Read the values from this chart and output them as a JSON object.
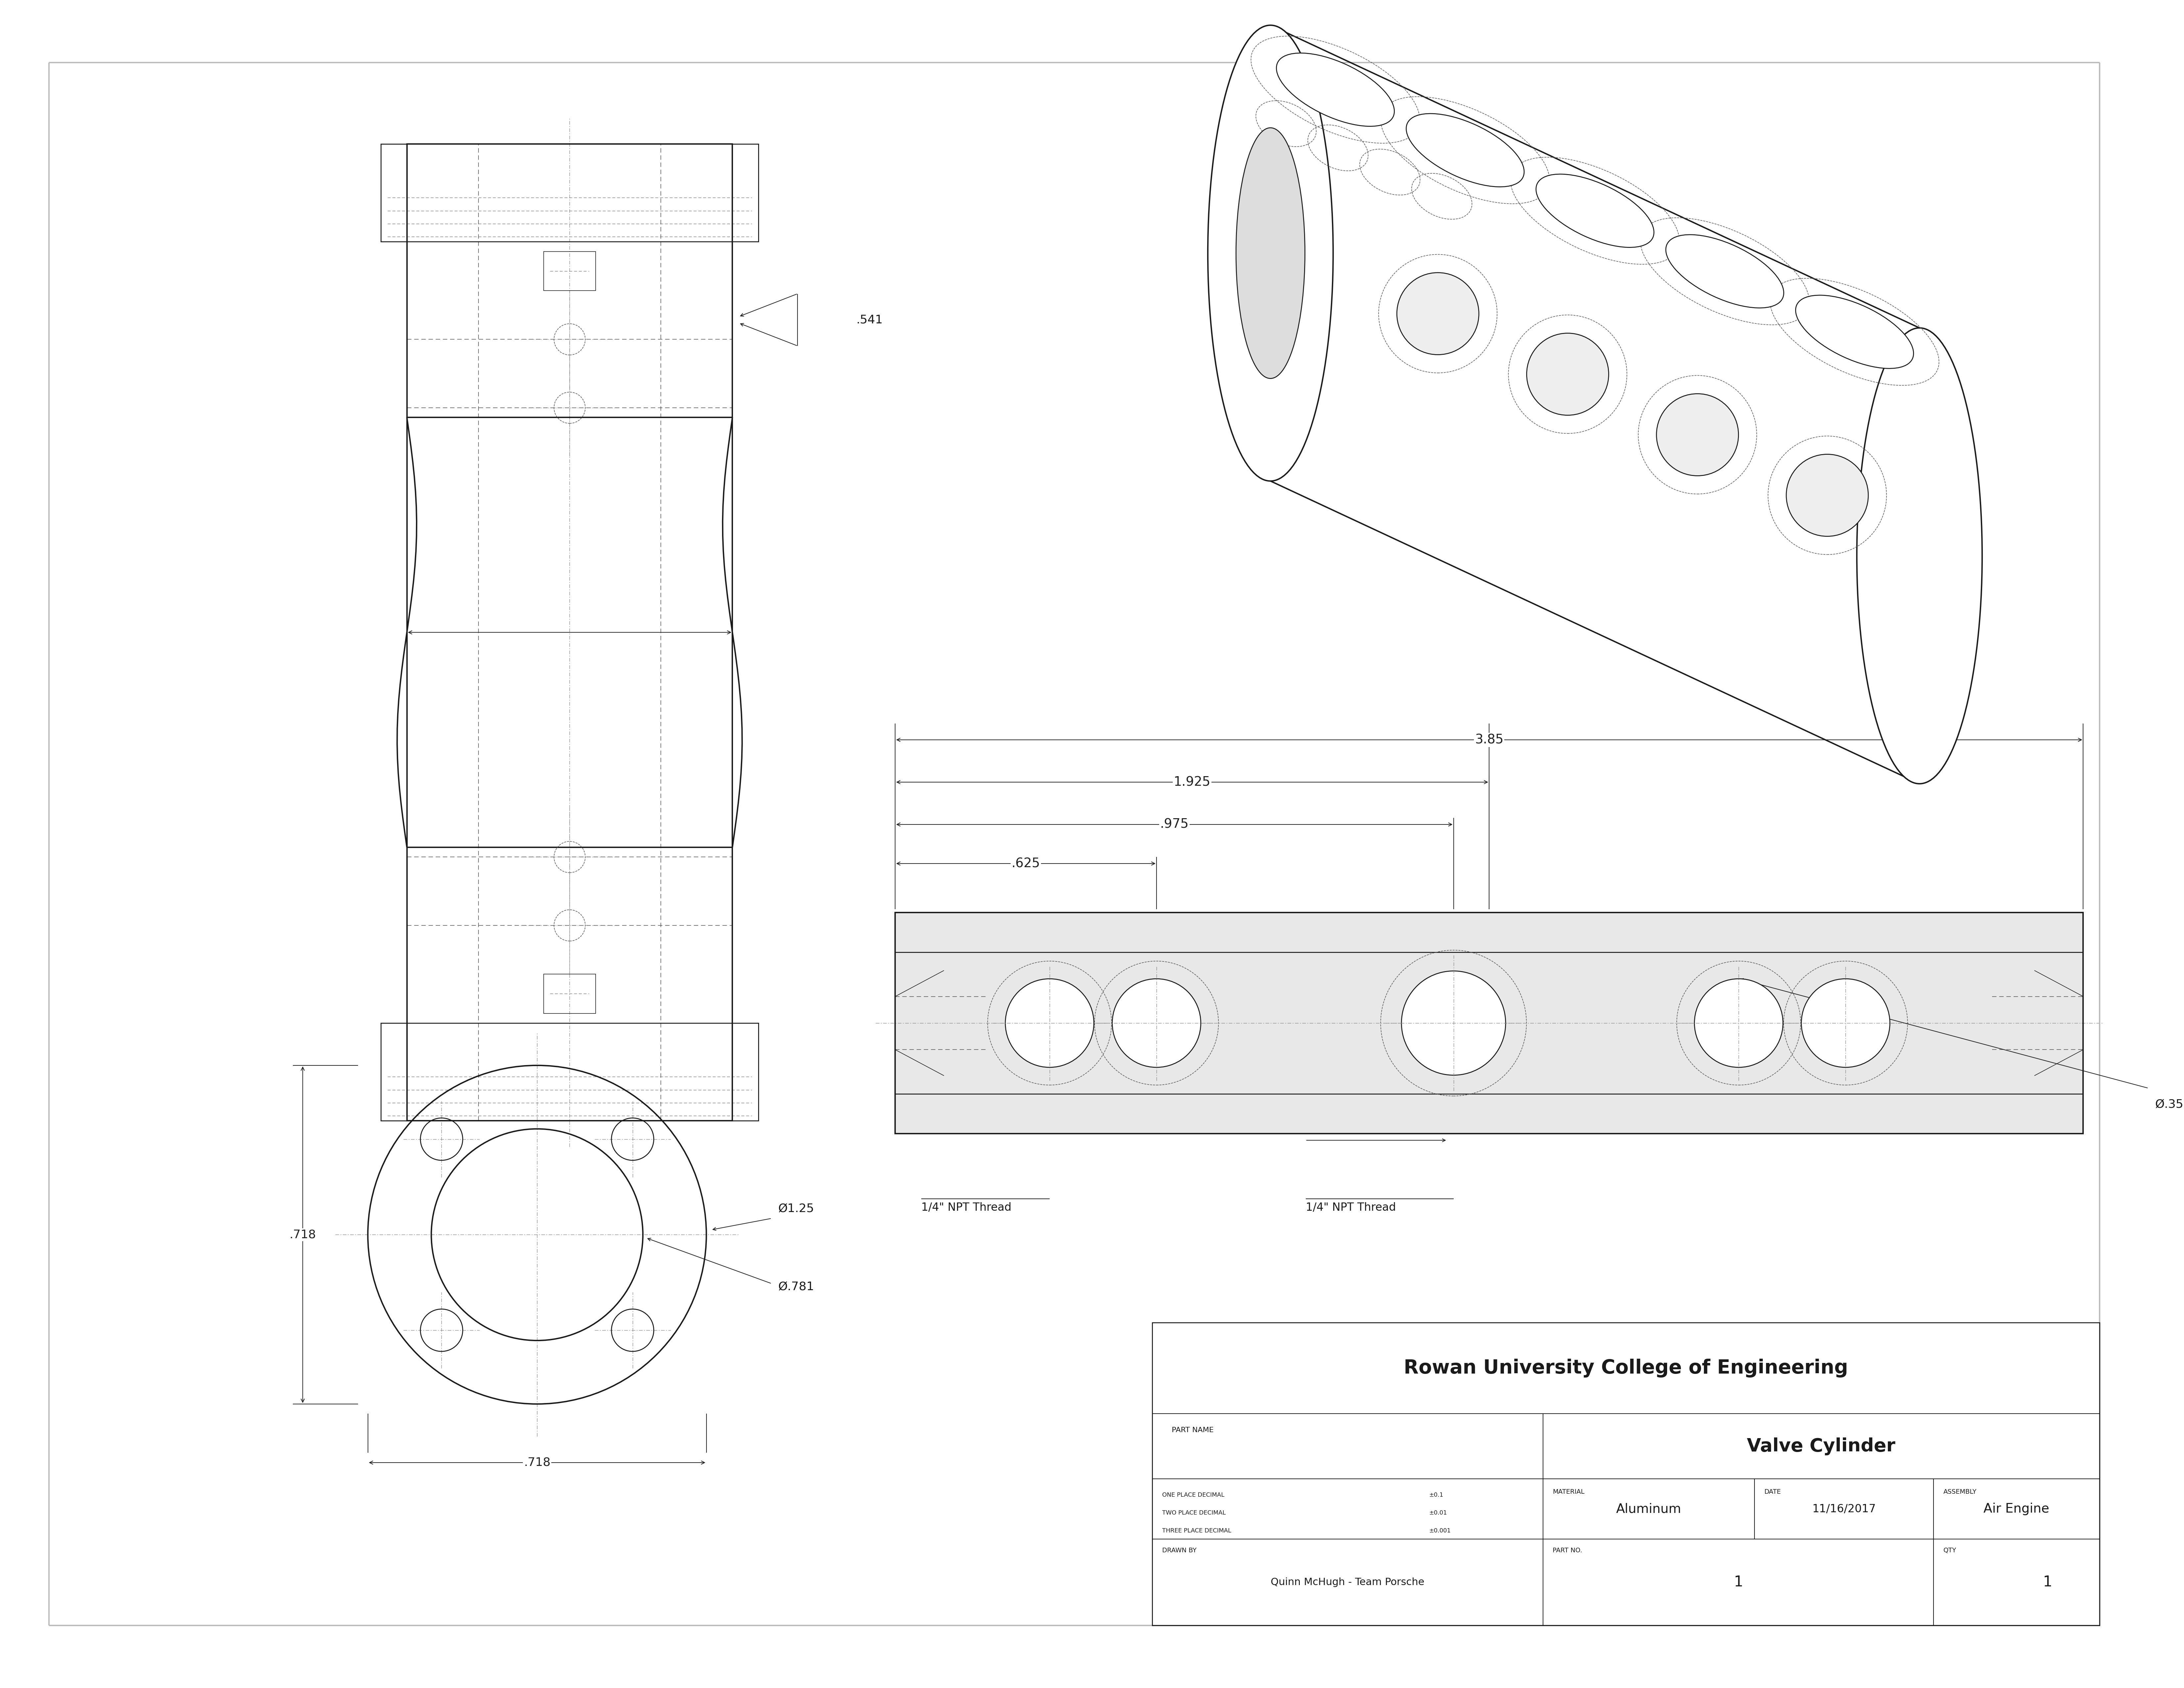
{
  "bg_color": "#ffffff",
  "border_color": "#bbbbbb",
  "line_color": "#1a1a1a",
  "dim_color": "#222222",
  "dashed_color": "#555555",
  "center_color": "#888888",
  "title_block": {
    "company": "Rowan University College of Engineering",
    "part_name": "Valve Cylinder",
    "material": "Aluminum",
    "date": "11/16/2017",
    "assembly": "Air Engine",
    "drawn_by": "Quinn McHugh - Team Porsche",
    "part_no": "1",
    "qty": "1",
    "one_place": "±0.1",
    "two_place": "±0.01",
    "three_place": "±0.001"
  },
  "dims": {
    "total_length": "3.85",
    "half_length": "1.925",
    "port_spacing": ".975",
    "port_od": ".625",
    "flange_od": "Ø1.25",
    "bore_id": "Ø.781",
    "flange_width": ".718",
    "flange_height": ".718",
    "stem_width": ".541",
    "small_hole": "Ø.350",
    "npt_note": "1/4\" NPT Thread"
  }
}
